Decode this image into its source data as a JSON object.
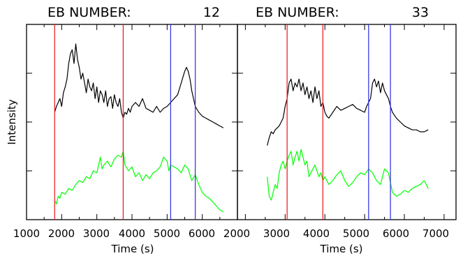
{
  "colors": {
    "background": "#ffffff",
    "axis": "#000000",
    "black_series": "#000000",
    "green_series": "#00ff00",
    "red_lines": "#e8232b",
    "blue_lines": "#3a3ae8"
  },
  "ylabel": "Intensity",
  "chart_data": [
    {
      "type": "line",
      "title_prefix": "EB NUMBER:",
      "title_number": "12",
      "xlabel": "Time (s)",
      "ylabel": "Intensity",
      "xlim": [
        1000,
        7000
      ],
      "ylim": [
        0,
        1
      ],
      "tick_labels": [
        "1000",
        "2000",
        "3000",
        "4000",
        "5000",
        "6000"
      ],
      "y_ticks": [
        0.25,
        0.5,
        0.75
      ],
      "red_lines": [
        1800,
        3750
      ],
      "blue_lines": [
        5100,
        5800
      ],
      "series": [
        {
          "color": "black",
          "x": [
            1800,
            1850,
            1900,
            1950,
            2000,
            2050,
            2100,
            2150,
            2200,
            2250,
            2300,
            2350,
            2400,
            2450,
            2500,
            2550,
            2600,
            2650,
            2700,
            2750,
            2800,
            2850,
            2900,
            2950,
            3000,
            3050,
            3100,
            3150,
            3200,
            3250,
            3300,
            3350,
            3400,
            3450,
            3500,
            3550,
            3600,
            3650,
            3700,
            3750,
            3800,
            3850,
            3900,
            3950,
            4000,
            4100,
            4200,
            4300,
            4400,
            4500,
            4600,
            4700,
            4800,
            4900,
            5000,
            5100,
            5200,
            5300,
            5400,
            5450,
            5500,
            5550,
            5600,
            5650,
            5700,
            5750,
            5800,
            5900,
            6000,
            6100,
            6200,
            6300,
            6400,
            6500,
            6600
          ],
          "y": [
            0.55,
            0.58,
            0.6,
            0.62,
            0.58,
            0.65,
            0.68,
            0.72,
            0.8,
            0.85,
            0.87,
            0.8,
            0.9,
            0.82,
            0.78,
            0.72,
            0.75,
            0.7,
            0.65,
            0.72,
            0.68,
            0.66,
            0.7,
            0.62,
            0.68,
            0.6,
            0.66,
            0.64,
            0.6,
            0.66,
            0.58,
            0.62,
            0.63,
            0.57,
            0.64,
            0.6,
            0.58,
            0.62,
            0.55,
            0.52,
            0.55,
            0.54,
            0.57,
            0.55,
            0.58,
            0.6,
            0.58,
            0.62,
            0.57,
            0.56,
            0.55,
            0.58,
            0.55,
            0.57,
            0.58,
            0.6,
            0.62,
            0.64,
            0.7,
            0.73,
            0.76,
            0.78,
            0.76,
            0.72,
            0.66,
            0.62,
            0.58,
            0.55,
            0.53,
            0.52,
            0.51,
            0.5,
            0.49,
            0.48,
            0.47
          ]
        },
        {
          "color": "green",
          "x": [
            1800,
            1850,
            1900,
            1950,
            2000,
            2100,
            2200,
            2300,
            2400,
            2500,
            2600,
            2700,
            2800,
            2900,
            3000,
            3100,
            3150,
            3200,
            3300,
            3400,
            3500,
            3600,
            3700,
            3750,
            3800,
            3900,
            4000,
            4100,
            4200,
            4300,
            4400,
            4500,
            4600,
            4700,
            4800,
            4900,
            5000,
            5050,
            5100,
            5200,
            5300,
            5400,
            5500,
            5600,
            5700,
            5800,
            5900,
            6000,
            6100,
            6200,
            6300,
            6400,
            6500,
            6600
          ],
          "y": [
            0.1,
            0.08,
            0.12,
            0.11,
            0.14,
            0.13,
            0.16,
            0.15,
            0.18,
            0.2,
            0.19,
            0.22,
            0.21,
            0.25,
            0.24,
            0.32,
            0.26,
            0.28,
            0.3,
            0.27,
            0.31,
            0.33,
            0.32,
            0.35,
            0.28,
            0.25,
            0.27,
            0.22,
            0.24,
            0.2,
            0.23,
            0.21,
            0.24,
            0.25,
            0.27,
            0.32,
            0.3,
            0.25,
            0.28,
            0.27,
            0.26,
            0.24,
            0.28,
            0.26,
            0.2,
            0.23,
            0.18,
            0.14,
            0.12,
            0.11,
            0.09,
            0.07,
            0.05,
            0.04
          ]
        }
      ]
    },
    {
      "type": "line",
      "title_prefix": "EB NUMBER:",
      "title_number": "33",
      "xlabel": "Time (s)",
      "ylabel": "Intensity",
      "xlim": [
        2000,
        7000
      ],
      "ylim": [
        0,
        1
      ],
      "tick_labels": [
        "2000",
        "3000",
        "4000",
        "5000",
        "6000",
        "7000"
      ],
      "y_ticks": [
        0.25,
        0.5,
        0.75
      ],
      "red_lines": [
        3050,
        3950
      ],
      "blue_lines": [
        5100,
        5650
      ],
      "series": [
        {
          "color": "black",
          "x": [
            2550,
            2600,
            2650,
            2700,
            2750,
            2800,
            2850,
            2900,
            2950,
            3000,
            3050,
            3100,
            3150,
            3200,
            3250,
            3300,
            3350,
            3400,
            3450,
            3500,
            3550,
            3600,
            3650,
            3700,
            3750,
            3800,
            3850,
            3900,
            3950,
            4000,
            4050,
            4100,
            4200,
            4300,
            4400,
            4500,
            4600,
            4700,
            4800,
            4900,
            5000,
            5050,
            5100,
            5150,
            5200,
            5250,
            5300,
            5350,
            5400,
            5450,
            5500,
            5550,
            5600,
            5650,
            5700,
            5800,
            5900,
            6000,
            6100,
            6200,
            6300,
            6400,
            6500,
            6600
          ],
          "y": [
            0.38,
            0.42,
            0.45,
            0.44,
            0.46,
            0.47,
            0.48,
            0.5,
            0.52,
            0.58,
            0.62,
            0.7,
            0.72,
            0.66,
            0.7,
            0.68,
            0.72,
            0.66,
            0.7,
            0.64,
            0.68,
            0.62,
            0.66,
            0.6,
            0.68,
            0.62,
            0.66,
            0.58,
            0.6,
            0.55,
            0.53,
            0.52,
            0.55,
            0.58,
            0.56,
            0.57,
            0.58,
            0.59,
            0.57,
            0.56,
            0.55,
            0.58,
            0.6,
            0.62,
            0.7,
            0.72,
            0.68,
            0.71,
            0.65,
            0.7,
            0.66,
            0.64,
            0.62,
            0.58,
            0.55,
            0.52,
            0.5,
            0.48,
            0.47,
            0.46,
            0.46,
            0.45,
            0.45,
            0.46
          ]
        },
        {
          "color": "green",
          "x": [
            2550,
            2600,
            2650,
            2700,
            2750,
            2800,
            2850,
            2900,
            2950,
            3000,
            3050,
            3100,
            3150,
            3200,
            3250,
            3300,
            3350,
            3400,
            3450,
            3500,
            3550,
            3600,
            3650,
            3700,
            3750,
            3800,
            3850,
            3900,
            3950,
            4000,
            4100,
            4200,
            4300,
            4400,
            4500,
            4600,
            4700,
            4800,
            4900,
            5000,
            5100,
            5200,
            5300,
            5400,
            5500,
            5600,
            5700,
            5800,
            5900,
            6000,
            6100,
            6200,
            6300,
            6400,
            6500,
            6600
          ],
          "y": [
            0.22,
            0.12,
            0.1,
            0.14,
            0.18,
            0.16,
            0.24,
            0.28,
            0.3,
            0.26,
            0.3,
            0.33,
            0.35,
            0.28,
            0.32,
            0.35,
            0.3,
            0.36,
            0.32,
            0.28,
            0.3,
            0.22,
            0.24,
            0.26,
            0.28,
            0.25,
            0.22,
            0.24,
            0.2,
            0.22,
            0.18,
            0.2,
            0.23,
            0.25,
            0.2,
            0.17,
            0.19,
            0.22,
            0.24,
            0.23,
            0.26,
            0.24,
            0.2,
            0.18,
            0.26,
            0.24,
            0.14,
            0.12,
            0.13,
            0.15,
            0.14,
            0.16,
            0.17,
            0.18,
            0.2,
            0.16
          ]
        }
      ]
    }
  ]
}
